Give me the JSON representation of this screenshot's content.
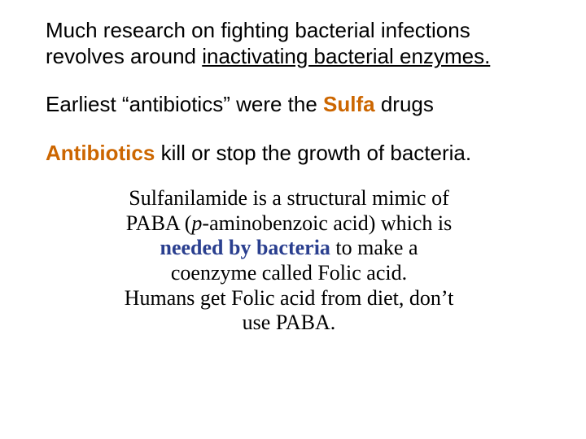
{
  "colors": {
    "background": "#ffffff",
    "text": "#000000",
    "accent_orange": "#cc6600",
    "accent_blue": "#2a3f8f"
  },
  "typography": {
    "body_font": "Arial",
    "body_size_pt": 20,
    "serif_font": "Times New Roman",
    "serif_size_pt": 20
  },
  "para1": {
    "line1": "Much research on fighting bacterial infections",
    "line2_pre": "revolves around ",
    "line2_underlined": "inactivating bacterial enzymes."
  },
  "para2": {
    "pre": "Earliest “antibiotics” were the ",
    "sulfa": "Sulfa",
    "post": " drugs"
  },
  "para3": {
    "antibiotics": "Antibiotics",
    "rest": " kill or stop the growth of bacteria."
  },
  "para4": {
    "l1": "Sulfanilamide is a structural mimic of",
    "l2_pre": "PABA (",
    "l2_ital": "p",
    "l2_post": "-aminobenzoic acid) which is",
    "l3_needed": "needed by bacteria",
    "l3_post": " to make a",
    "l4": "coenzyme called Folic acid.",
    "l5": "Humans get Folic acid from diet, don’t",
    "l6": "use PABA."
  }
}
